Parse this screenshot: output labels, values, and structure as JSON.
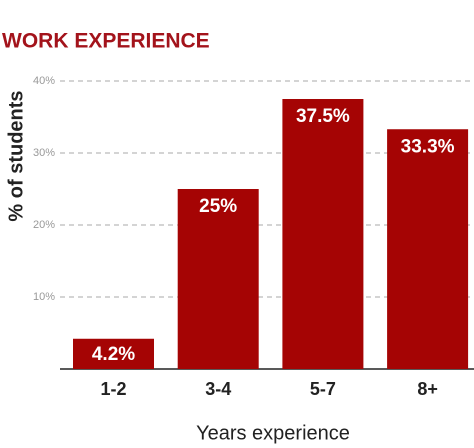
{
  "chart_data": {
    "type": "bar",
    "title": "WORK EXPERIENCE",
    "y_label": "% of students",
    "x_label": "Years experience",
    "categories": [
      "1-2",
      "3-4",
      "5-7",
      "8+"
    ],
    "values": [
      4.2,
      25,
      37.5,
      33.3
    ],
    "value_labels": [
      "4.2%",
      "25%",
      "37.5%",
      "33.3%"
    ],
    "color": "#a50404",
    "ylim": [
      0,
      40
    ],
    "yticks": [
      {
        "value": 10,
        "label": "10%"
      },
      {
        "value": 20,
        "label": "20%"
      },
      {
        "value": 30,
        "label": "30%"
      },
      {
        "value": 40,
        "label": "40%"
      }
    ],
    "grid": true
  }
}
